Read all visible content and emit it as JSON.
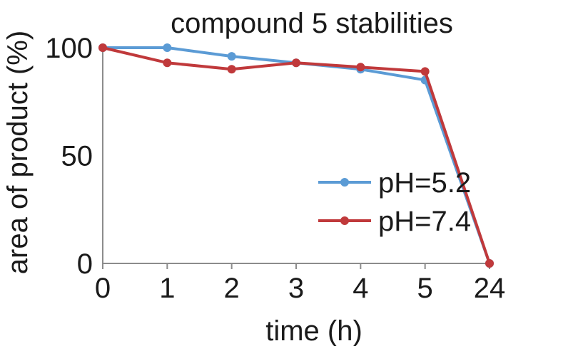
{
  "chart_data": {
    "type": "line",
    "title": "compound 5 stabilities",
    "xlabel": "time (h)",
    "ylabel": "area of product (%)",
    "categories": [
      "0",
      "1",
      "2",
      "3",
      "4",
      "5",
      "24"
    ],
    "ylim": [
      0,
      100
    ],
    "yticks": [
      "0",
      "50",
      "100"
    ],
    "grid": false,
    "legend_position": "right",
    "series": [
      {
        "name": "pH=5.2",
        "color": "#5b9bd5",
        "values": [
          100,
          100,
          96,
          93,
          90,
          85,
          0
        ]
      },
      {
        "name": "pH=7.4",
        "color": "#c0393b",
        "values": [
          100,
          93,
          90,
          93,
          91,
          89,
          0
        ]
      }
    ]
  }
}
